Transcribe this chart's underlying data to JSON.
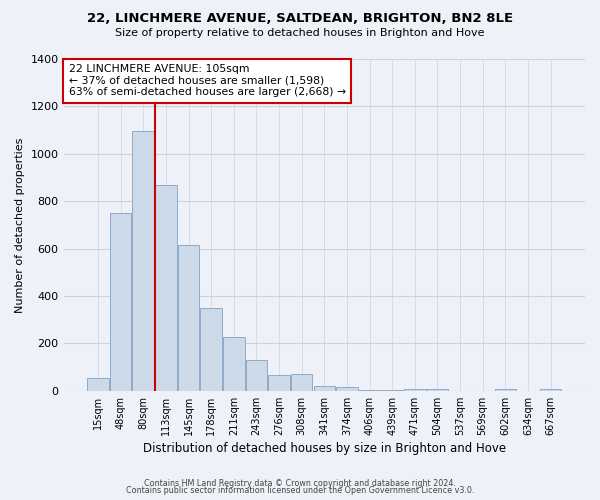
{
  "title": "22, LINCHMERE AVENUE, SALTDEAN, BRIGHTON, BN2 8LE",
  "subtitle": "Size of property relative to detached houses in Brighton and Hove",
  "xlabel": "Distribution of detached houses by size in Brighton and Hove",
  "ylabel": "Number of detached properties",
  "bar_labels": [
    "15sqm",
    "48sqm",
    "80sqm",
    "113sqm",
    "145sqm",
    "178sqm",
    "211sqm",
    "243sqm",
    "276sqm",
    "308sqm",
    "341sqm",
    "374sqm",
    "406sqm",
    "439sqm",
    "471sqm",
    "504sqm",
    "537sqm",
    "569sqm",
    "602sqm",
    "634sqm",
    "667sqm"
  ],
  "bar_values": [
    55,
    750,
    1095,
    870,
    615,
    350,
    228,
    130,
    65,
    70,
    22,
    18,
    5,
    3,
    8,
    8,
    0,
    0,
    8,
    0,
    8
  ],
  "bar_color": "#ccd9e8",
  "bar_edge_color": "#8faacc",
  "vline_x": 2.5,
  "vline_color": "#cc0000",
  "annotation_text": "22 LINCHMERE AVENUE: 105sqm\n← 37% of detached houses are smaller (1,598)\n63% of semi-detached houses are larger (2,668) →",
  "annotation_box_color": "#ffffff",
  "annotation_box_edge": "#cc0000",
  "ylim": [
    0,
    1400
  ],
  "yticks": [
    0,
    200,
    400,
    600,
    800,
    1000,
    1200,
    1400
  ],
  "footer1": "Contains HM Land Registry data © Crown copyright and database right 2024.",
  "footer2": "Contains public sector information licensed under the Open Government Licence v3.0.",
  "background_color": "#eef2f8"
}
